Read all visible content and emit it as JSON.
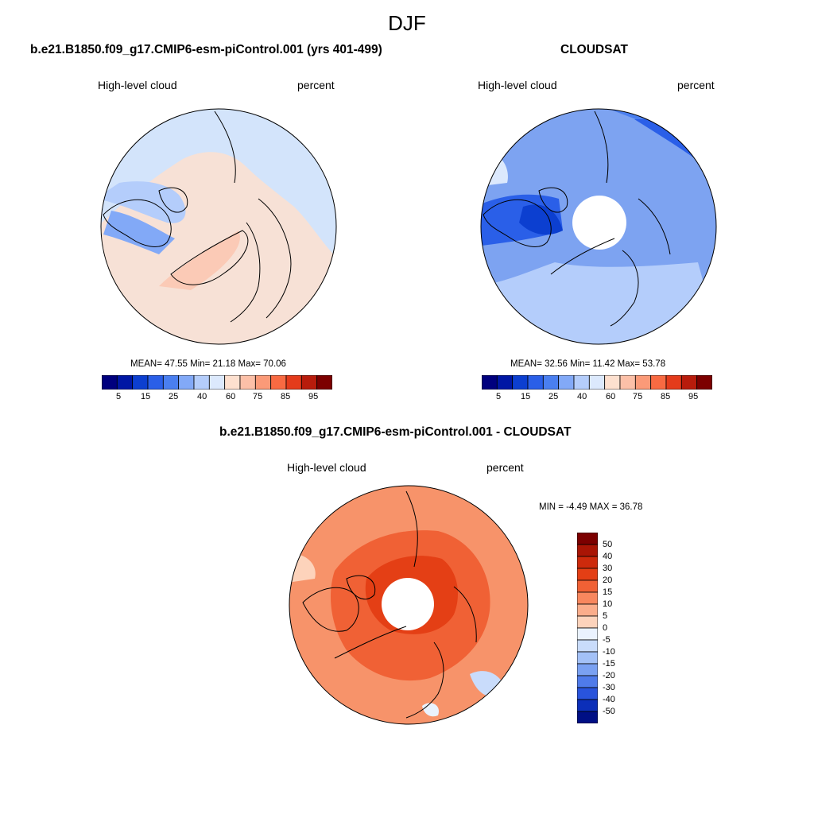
{
  "figure": {
    "title": "DJF"
  },
  "colors": {
    "abs_scale": [
      "#00007e",
      "#0017a4",
      "#0c3fd0",
      "#2a5fe8",
      "#4a7ff0",
      "#82a9f7",
      "#b4cdfb",
      "#dce9fd",
      "#fde0cf",
      "#fcc0a8",
      "#fb9a78",
      "#f86a42",
      "#e43b1b",
      "#b81c0c",
      "#7c0000"
    ],
    "diff_scale": [
      "#7c0000",
      "#a91505",
      "#cd2a0c",
      "#e43f15",
      "#f06135",
      "#f8875e",
      "#fbad8b",
      "#fdd3bb",
      "#eaf2fe",
      "#c9dcfb",
      "#a3c1f7",
      "#7aa1f2",
      "#4f7bea",
      "#2954dc",
      "#0c2fb9",
      "#000f85"
    ],
    "panel1_fill": "#d3e4fb",
    "panel2_fill": "#7da3f1",
    "panel3_fill": "#f7936a",
    "coast": "#000000"
  },
  "panels": [
    {
      "title": "b.e21.B1850.f09_g17.CMIP6-esm-piControl.001 (yrs 401-499)",
      "left_label": "High-level cloud",
      "right_label": "percent",
      "stats": "MEAN=  47.55  Min=  21.18  Max=  70.06",
      "colorbar_ticks": [
        "5",
        "15",
        "25",
        "40",
        "60",
        "75",
        "85",
        "95"
      ]
    },
    {
      "title": "CLOUDSAT",
      "left_label": "High-level cloud",
      "right_label": "percent",
      "stats": "MEAN=  32.56  Min=  11.42  Max=  53.78",
      "colorbar_ticks": [
        "5",
        "15",
        "25",
        "40",
        "60",
        "75",
        "85",
        "95"
      ]
    },
    {
      "title": "b.e21.B1850.f09_g17.CMIP6-esm-piControl.001 - CLOUDSAT",
      "left_label": "High-level cloud",
      "right_label": "percent",
      "stats": "MIN =  -4.49 MAX =  36.78",
      "colorbar_ticks": [
        "50",
        "40",
        "30",
        "20",
        "15",
        "10",
        "5",
        "0",
        "-5",
        "-10",
        "-15",
        "-20",
        "-30",
        "-40",
        "-50"
      ]
    }
  ],
  "chart_data": [
    {
      "type": "heatmap",
      "projection": "north polar stereographic",
      "title": "b.e21.B1850.f09_g17.CMIP6-esm-piControl.001 (yrs 401-499)",
      "variable": "High-level cloud",
      "units": "percent",
      "mean": 47.55,
      "min": 21.18,
      "max": 70.06,
      "levels": [
        5,
        10,
        15,
        20,
        25,
        30,
        40,
        50,
        60,
        70,
        75,
        80,
        85,
        90,
        95
      ]
    },
    {
      "type": "heatmap",
      "projection": "north polar stereographic",
      "title": "CLOUDSAT",
      "variable": "High-level cloud",
      "units": "percent",
      "mean": 32.56,
      "min": 11.42,
      "max": 53.78,
      "levels": [
        5,
        10,
        15,
        20,
        25,
        30,
        40,
        50,
        60,
        70,
        75,
        80,
        85,
        90,
        95
      ]
    },
    {
      "type": "heatmap",
      "projection": "north polar stereographic",
      "title": "b.e21.B1850.f09_g17.CMIP6-esm-piControl.001 - CLOUDSAT",
      "variable": "High-level cloud",
      "units": "percent",
      "min": -4.49,
      "max": 36.78,
      "levels": [
        50,
        40,
        30,
        20,
        15,
        10,
        5,
        0,
        -5,
        -10,
        -15,
        -20,
        -30,
        -40,
        -50
      ]
    }
  ]
}
